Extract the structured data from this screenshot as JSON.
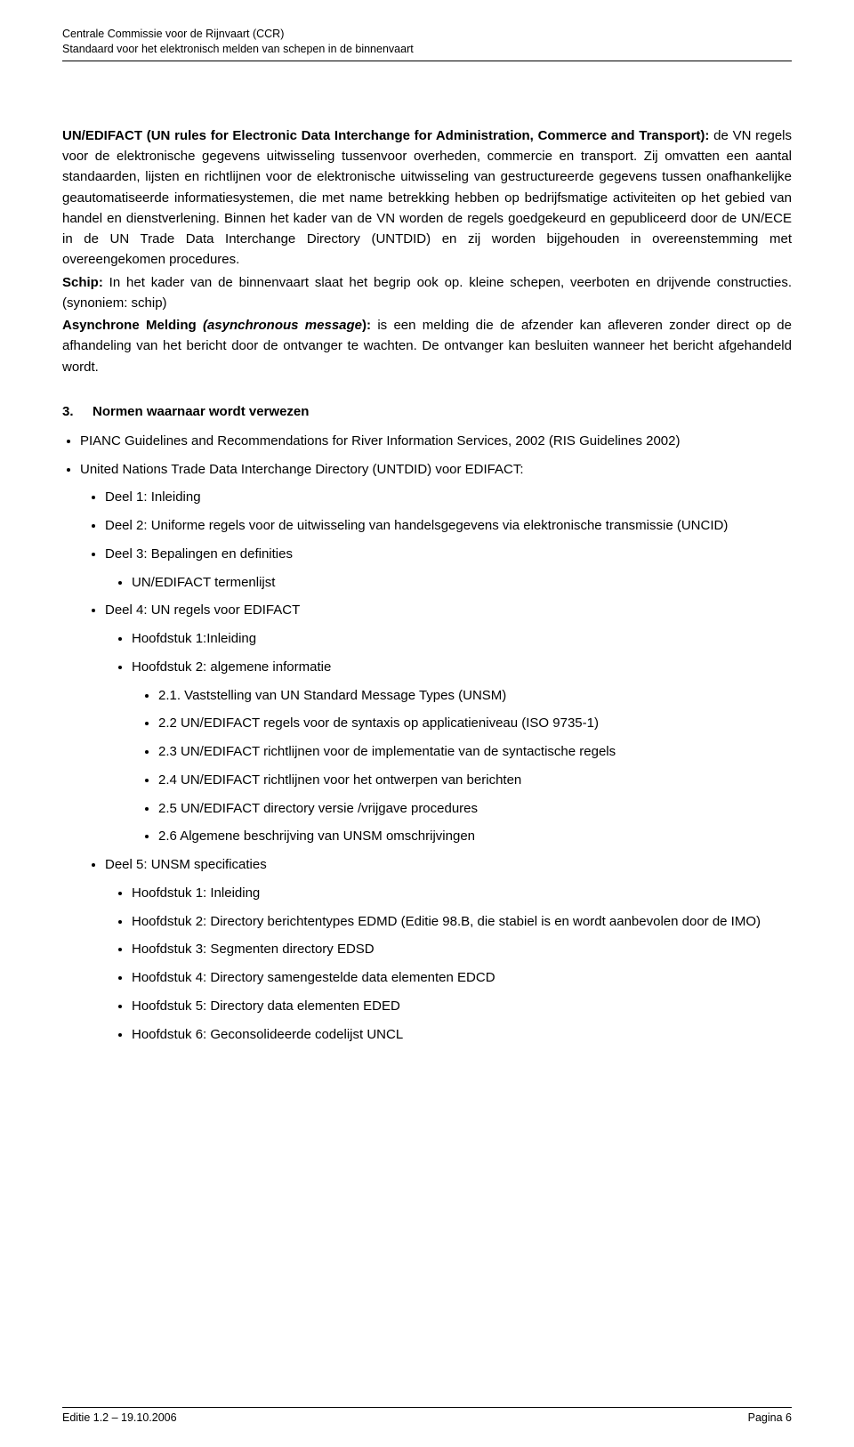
{
  "header": {
    "line1": "Centrale Commissie voor de Rijnvaart (CCR)",
    "line2": "Standaard voor het elektronisch melden van schepen in de binnenvaart"
  },
  "para1": {
    "lead": "UN/EDIFACT (UN rules for Electronic Data Interchange for Administration, Commerce and Transport):",
    "rest": " de VN regels voor de elektronische gegevens uitwisseling tussenvoor overheden, commercie en transport. Zij omvatten een aantal standaarden, lijsten en richtlijnen voor de elektronische uitwisseling van gestructureerde gegevens tussen onafhankelijke geautomatiseerde informatiesystemen, die met name betrekking hebben op bedrijfsmatige activiteiten op het gebied van handel en dienstverlening. Binnen het kader van de VN worden de regels goedgekeurd en gepubliceerd door de UN/ECE in de UN Trade Data Interchange Directory (UNTDID) en zij worden bijgehouden in overeenstemming met overeengekomen procedures."
  },
  "para2": {
    "lead": "Schip:",
    "rest": " In het kader van de binnenvaart slaat het begrip ook op. kleine schepen, veerboten en drijvende constructies. (synoniem: schip)"
  },
  "para3": {
    "lead1": "Asynchrone Melding ",
    "italic": "(asynchronous message",
    "lead2": "):",
    "rest": " is een melding die de afzender kan afleveren zonder direct op de afhandeling van het bericht door de ontvanger te wachten. De ontvanger kan besluiten wanneer het bericht afgehandeld wordt."
  },
  "section3": {
    "num": "3.",
    "title": "Normen waarnaar wordt verwezen"
  },
  "bullets": {
    "b1": "PIANC Guidelines and Recommendations for River Information Services, 2002 (RIS Guidelines 2002)",
    "b2": "United Nations Trade Data Interchange Directory (UNTDID) voor EDIFACT:",
    "d1": "Deel 1: Inleiding",
    "d2": "Deel 2: Uniforme regels voor de uitwisseling van handelsgegevens via elektronische transmissie  (UNCID)",
    "d3": "Deel 3: Bepalingen en definities",
    "d3_1": "UN/EDIFACT termenlijst",
    "d4": "Deel 4: UN regels voor EDIFACT",
    "d4_h1": "Hoofdstuk 1:Inleiding",
    "d4_h2": "Hoofdstuk 2: algemene informatie",
    "d4_h2_1": "2.1. Vaststelling van UN Standard Message Types (UNSM)",
    "d4_h2_2": "2.2 UN/EDIFACT regels voor de syntaxis op applicatieniveau (ISO 9735-1)",
    "d4_h2_3": "2.3 UN/EDIFACT richtlijnen voor de implementatie van de syntactische regels",
    "d4_h2_4": "2.4 UN/EDIFACT richtlijnen voor het ontwerpen van berichten",
    "d4_h2_5": "2.5 UN/EDIFACT directory versie /vrijgave procedures",
    "d4_h2_6": "2.6 Algemene beschrijving van UNSM omschrijvingen",
    "d5": "Deel 5: UNSM specificaties",
    "d5_h1": "Hoofdstuk 1: Inleiding",
    "d5_h2": "Hoofdstuk 2: Directory berichtentypes EDMD (Editie 98.B, die stabiel is en wordt aanbevolen door de IMO)",
    "d5_h3": "Hoofdstuk 3: Segmenten directory EDSD",
    "d5_h4": "Hoofdstuk 4: Directory samengestelde data elementen EDCD",
    "d5_h5": "Hoofdstuk 5: Directory data elementen EDED",
    "d5_h6": "Hoofdstuk 6: Geconsolideerde codelijst UNCL"
  },
  "footer": {
    "left": "Editie 1.2 – 19.10.2006",
    "right": "Pagina 6"
  }
}
